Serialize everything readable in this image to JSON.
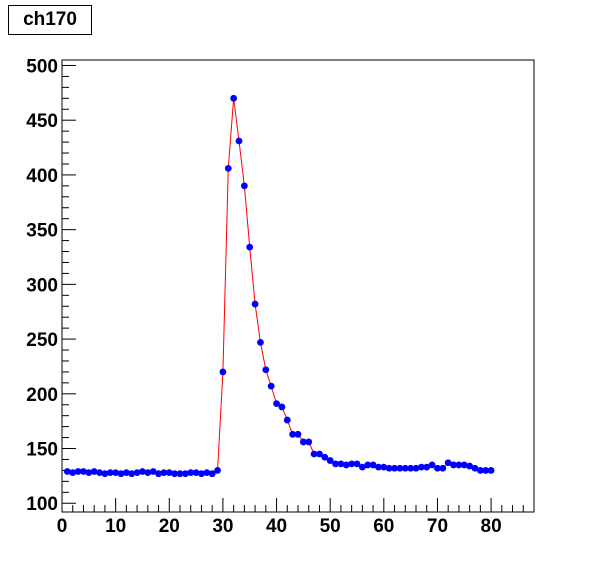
{
  "chart_data": {
    "type": "scatter",
    "title": "ch170",
    "xlabel": "",
    "ylabel": "",
    "xlim": [
      0,
      88
    ],
    "ylim": [
      92,
      505
    ],
    "x_ticks": [
      0,
      10,
      20,
      30,
      40,
      50,
      60,
      70,
      80
    ],
    "y_ticks": [
      100,
      150,
      200,
      250,
      300,
      350,
      400,
      450,
      500
    ],
    "grid": false,
    "colors": {
      "marker": "#0000ff",
      "line": "#ff0000",
      "frame": "#000000"
    },
    "series": [
      {
        "x": [
          1,
          2,
          3,
          4,
          5,
          6,
          7,
          8,
          9,
          10,
          11,
          12,
          13,
          14,
          15,
          16,
          17,
          18,
          19,
          20,
          21,
          22,
          23,
          24,
          25,
          26,
          27,
          28,
          29,
          30,
          31,
          32,
          33,
          34,
          35,
          36,
          37,
          38,
          39,
          40,
          41,
          42,
          43,
          44,
          45,
          46,
          47,
          48,
          49,
          50,
          51,
          52,
          53,
          54,
          55,
          56,
          57,
          58,
          59,
          60,
          61,
          62,
          63,
          64,
          65,
          66,
          67,
          68,
          69,
          70,
          71,
          72,
          73,
          74,
          75,
          76,
          77,
          78,
          79,
          80
        ],
        "values": [
          129,
          128,
          129,
          129,
          128,
          129,
          128,
          127,
          128,
          128,
          127,
          128,
          127,
          128,
          129,
          128,
          129,
          127,
          128,
          128,
          127,
          127,
          127,
          128,
          128,
          127,
          128,
          127,
          130,
          220,
          406,
          470,
          431,
          390,
          334,
          282,
          247,
          222,
          207,
          191,
          188,
          176,
          163,
          163,
          156,
          156,
          145,
          145,
          142,
          139,
          136,
          136,
          135,
          136,
          136,
          133,
          135,
          135,
          133,
          133,
          132,
          132,
          132,
          132,
          132,
          132,
          133,
          133,
          135,
          132,
          132,
          137,
          135,
          135,
          135,
          134,
          132,
          130,
          130,
          130
        ]
      }
    ]
  }
}
